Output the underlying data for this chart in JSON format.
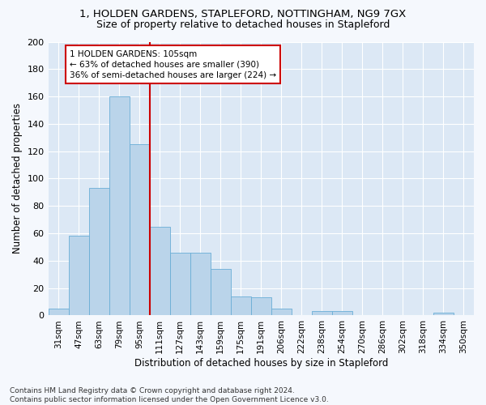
{
  "title": "1, HOLDEN GARDENS, STAPLEFORD, NOTTINGHAM, NG9 7GX",
  "subtitle": "Size of property relative to detached houses in Stapleford",
  "xlabel": "Distribution of detached houses by size in Stapleford",
  "ylabel": "Number of detached properties",
  "bar_color": "#bad4ea",
  "bar_edge_color": "#6aaed6",
  "categories": [
    "31sqm",
    "47sqm",
    "63sqm",
    "79sqm",
    "95sqm",
    "111sqm",
    "127sqm",
    "143sqm",
    "159sqm",
    "175sqm",
    "191sqm",
    "206sqm",
    "222sqm",
    "238sqm",
    "254sqm",
    "270sqm",
    "286sqm",
    "302sqm",
    "318sqm",
    "334sqm",
    "350sqm"
  ],
  "values": [
    5,
    58,
    93,
    160,
    125,
    65,
    46,
    46,
    34,
    14,
    13,
    5,
    0,
    3,
    3,
    0,
    0,
    0,
    0,
    2,
    0
  ],
  "ylim": [
    0,
    200
  ],
  "yticks": [
    0,
    20,
    40,
    60,
    80,
    100,
    120,
    140,
    160,
    180,
    200
  ],
  "property_line_x": 4.5,
  "property_line_color": "#cc0000",
  "annotation_text": "1 HOLDEN GARDENS: 105sqm\n← 63% of detached houses are smaller (390)\n36% of semi-detached houses are larger (224) →",
  "annotation_box_color": "#cc0000",
  "footer_text": "Contains HM Land Registry data © Crown copyright and database right 2024.\nContains public sector information licensed under the Open Government Licence v3.0.",
  "fig_background_color": "#f5f8fd",
  "plot_background_color": "#dce8f5",
  "title_fontsize": 9.5,
  "subtitle_fontsize": 9,
  "annotation_fontsize": 7.5,
  "footer_fontsize": 6.5,
  "xlabel_fontsize": 8.5,
  "ylabel_fontsize": 8.5,
  "tick_fontsize": 7.5,
  "ytick_fontsize": 8
}
